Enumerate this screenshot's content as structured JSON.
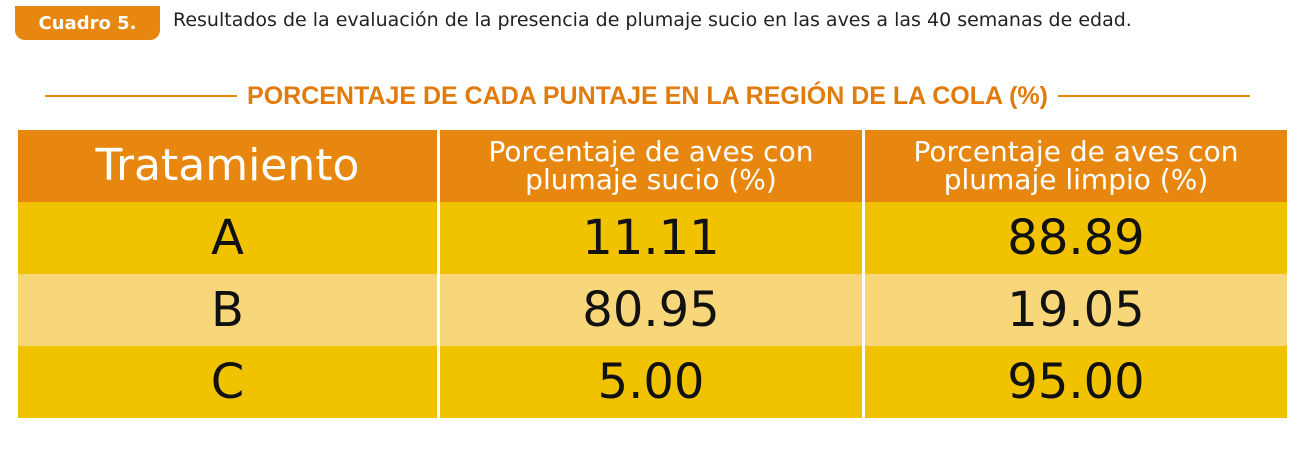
{
  "header": {
    "badge": "Cuadro 5.",
    "caption": "Resultados de la evaluación de la presencia de plumaje sucio en las aves a las 40 semanas de edad."
  },
  "table": {
    "title": "PORCENTAJE DE CADA PUNTAJE EN LA REGIÓN DE LA COLA (%)",
    "columns": [
      [
        "Tratamiento"
      ],
      [
        "Porcentaje de aves con",
        "plumaje sucio (%)"
      ],
      [
        "Porcentaje de aves con",
        "plumaje limpio (%)"
      ]
    ],
    "rows": [
      [
        "A",
        "11.11",
        "88.89"
      ],
      [
        "B",
        "80.95",
        "19.05"
      ],
      [
        "C",
        "5.00",
        "95.00"
      ]
    ]
  }
}
